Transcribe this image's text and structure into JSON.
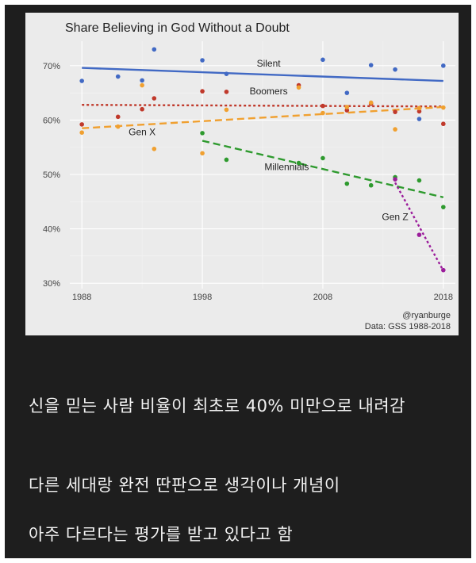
{
  "chart_data": {
    "type": "scatter",
    "title": "Share Believing in God Without a Doubt",
    "x_ticks": [
      1988,
      1998,
      2008,
      2018
    ],
    "y_ticks": [
      30,
      40,
      50,
      60,
      70
    ],
    "y_tick_labels": [
      "30%",
      "40%",
      "50%",
      "60%",
      "70%"
    ],
    "xlim": [
      1987,
      2019
    ],
    "ylim": [
      29,
      74.5
    ],
    "grid": true,
    "series": [
      {
        "name": "Silent",
        "color": "#4169c4",
        "points": [
          [
            1988,
            67.2
          ],
          [
            1991,
            68
          ],
          [
            1993,
            67.3
          ],
          [
            1994,
            73
          ],
          [
            1998,
            71
          ],
          [
            2000,
            68.5
          ],
          [
            2008,
            71.1
          ],
          [
            2010,
            65
          ],
          [
            2012,
            70.1
          ],
          [
            2014,
            69.3
          ],
          [
            2016,
            60.2
          ],
          [
            2018,
            70
          ]
        ],
        "trend": [
          [
            1988,
            69.6
          ],
          [
            2018,
            67.2
          ]
        ],
        "trend_style": "solid"
      },
      {
        "name": "Boomers",
        "color": "#c0392b",
        "points": [
          [
            1988,
            59.2
          ],
          [
            1991,
            60.6
          ],
          [
            1993,
            62
          ],
          [
            1994,
            64
          ],
          [
            1998,
            65.3
          ],
          [
            2000,
            65.2
          ],
          [
            2006,
            66.4
          ],
          [
            2008,
            62.6
          ],
          [
            2010,
            61.8
          ],
          [
            2012,
            63
          ],
          [
            2014,
            61.5
          ],
          [
            2016,
            61.6
          ],
          [
            2018,
            59.3
          ]
        ],
        "trend": [
          [
            1988,
            62.8
          ],
          [
            2018,
            62.5
          ]
        ],
        "trend_style": "dotted"
      },
      {
        "name": "Gen X",
        "color": "#f0a030",
        "points": [
          [
            1988,
            57.7
          ],
          [
            1991,
            58.8
          ],
          [
            1993,
            66.4
          ],
          [
            1994,
            54.7
          ],
          [
            1998,
            53.9
          ],
          [
            2000,
            61.9
          ],
          [
            2006,
            66
          ],
          [
            2008,
            61.3
          ],
          [
            2010,
            62.4
          ],
          [
            2012,
            63.2
          ],
          [
            2014,
            58.3
          ],
          [
            2016,
            62.2
          ],
          [
            2018,
            62.3
          ]
        ],
        "trend": [
          [
            1988,
            58.5
          ],
          [
            2018,
            62.4
          ]
        ],
        "trend_style": "dashed"
      },
      {
        "name": "Millennials",
        "color": "#2e9a2e",
        "points": [
          [
            1998,
            57.6
          ],
          [
            2000,
            52.7
          ],
          [
            2006,
            52.1
          ],
          [
            2008,
            53
          ],
          [
            2010,
            48.3
          ],
          [
            2012,
            48
          ],
          [
            2014,
            49.5
          ],
          [
            2016,
            48.9
          ],
          [
            2018,
            44
          ]
        ],
        "trend": [
          [
            1998,
            56.2
          ],
          [
            2018,
            45.8
          ]
        ],
        "trend_style": "dashed"
      },
      {
        "name": "Gen Z",
        "color": "#9b1d9b",
        "points": [
          [
            2014,
            49.1
          ],
          [
            2016,
            38.9
          ],
          [
            2018,
            32.4
          ]
        ],
        "trend": [
          [
            2014,
            48.5
          ],
          [
            2018,
            32.3
          ]
        ],
        "trend_style": "dotted"
      }
    ],
    "labels": [
      {
        "text": "Silent",
        "x": 2003.5,
        "y": 69.8
      },
      {
        "text": "Boomers",
        "x": 2003.5,
        "y": 64.7
      },
      {
        "text": "Gen X",
        "x": 1993,
        "y": 57.2
      },
      {
        "text": "Millennials",
        "x": 2005,
        "y": 50.8
      },
      {
        "text": "Gen Z",
        "x": 2014,
        "y": 41.6
      }
    ],
    "credit_handle": "@ryanburge",
    "credit_source": "Data: GSS 1988-2018"
  },
  "captions": [
    "신을 믿는 사람 비율이 최초로 40% 미만으로 내려감",
    "다른 세대랑 완전 딴판으로 생각이나 개념이",
    "아주 다르다는 평가를 받고 있다고 함"
  ]
}
